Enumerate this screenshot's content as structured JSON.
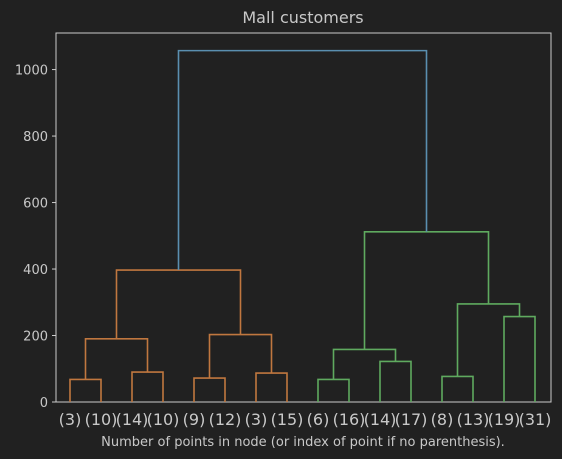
{
  "chart_data": {
    "type": "dendrogram",
    "title": "Mall customers",
    "xlabel": "Number of points in node (or index of point if no parenthesis).",
    "ylabel": "",
    "ylim": [
      0,
      1110
    ],
    "yticks": [
      0,
      200,
      400,
      600,
      800,
      1000
    ],
    "grid": false,
    "leaves": [
      "(3)",
      "(10)",
      "(14)",
      "(10)",
      "(9)",
      "(12)",
      "(3)",
      "(15)",
      "(6)",
      "(16)",
      "(14)",
      "(17)",
      "(8)",
      "(13)",
      "(19)",
      "(31)"
    ],
    "colors": {
      "background": "#212121",
      "axes": "#cccccc",
      "left_cluster": "#c0773f",
      "right_cluster": "#5faa5f",
      "root": "#5a8fb0"
    },
    "links": [
      {
        "left": 0,
        "right": 1,
        "height": 68,
        "color": "left_cluster"
      },
      {
        "left": 2,
        "right": 3,
        "height": 90,
        "color": "left_cluster"
      },
      {
        "left": 4,
        "right": 5,
        "height": 72,
        "color": "left_cluster"
      },
      {
        "left": 6,
        "right": 7,
        "height": 87,
        "color": "left_cluster"
      },
      {
        "left": 16,
        "right": 17,
        "height": 190,
        "color": "left_cluster"
      },
      {
        "left": 18,
        "right": 19,
        "height": 203,
        "color": "left_cluster"
      },
      {
        "left": 20,
        "right": 21,
        "height": 397,
        "color": "left_cluster"
      },
      {
        "left": 8,
        "right": 9,
        "height": 68,
        "color": "right_cluster"
      },
      {
        "left": 10,
        "right": 11,
        "height": 122,
        "color": "right_cluster"
      },
      {
        "left": 23,
        "right": 24,
        "height": 158,
        "color": "right_cluster"
      },
      {
        "left": 12,
        "right": 13,
        "height": 77,
        "color": "right_cluster"
      },
      {
        "left": 14,
        "right": 15,
        "height": 257,
        "color": "right_cluster"
      },
      {
        "left": 26,
        "right": 27,
        "height": 295,
        "color": "right_cluster"
      },
      {
        "left": 25,
        "right": 28,
        "height": 512,
        "color": "right_cluster"
      },
      {
        "left": 22,
        "right": 29,
        "height": 1057,
        "color": "root"
      }
    ]
  }
}
